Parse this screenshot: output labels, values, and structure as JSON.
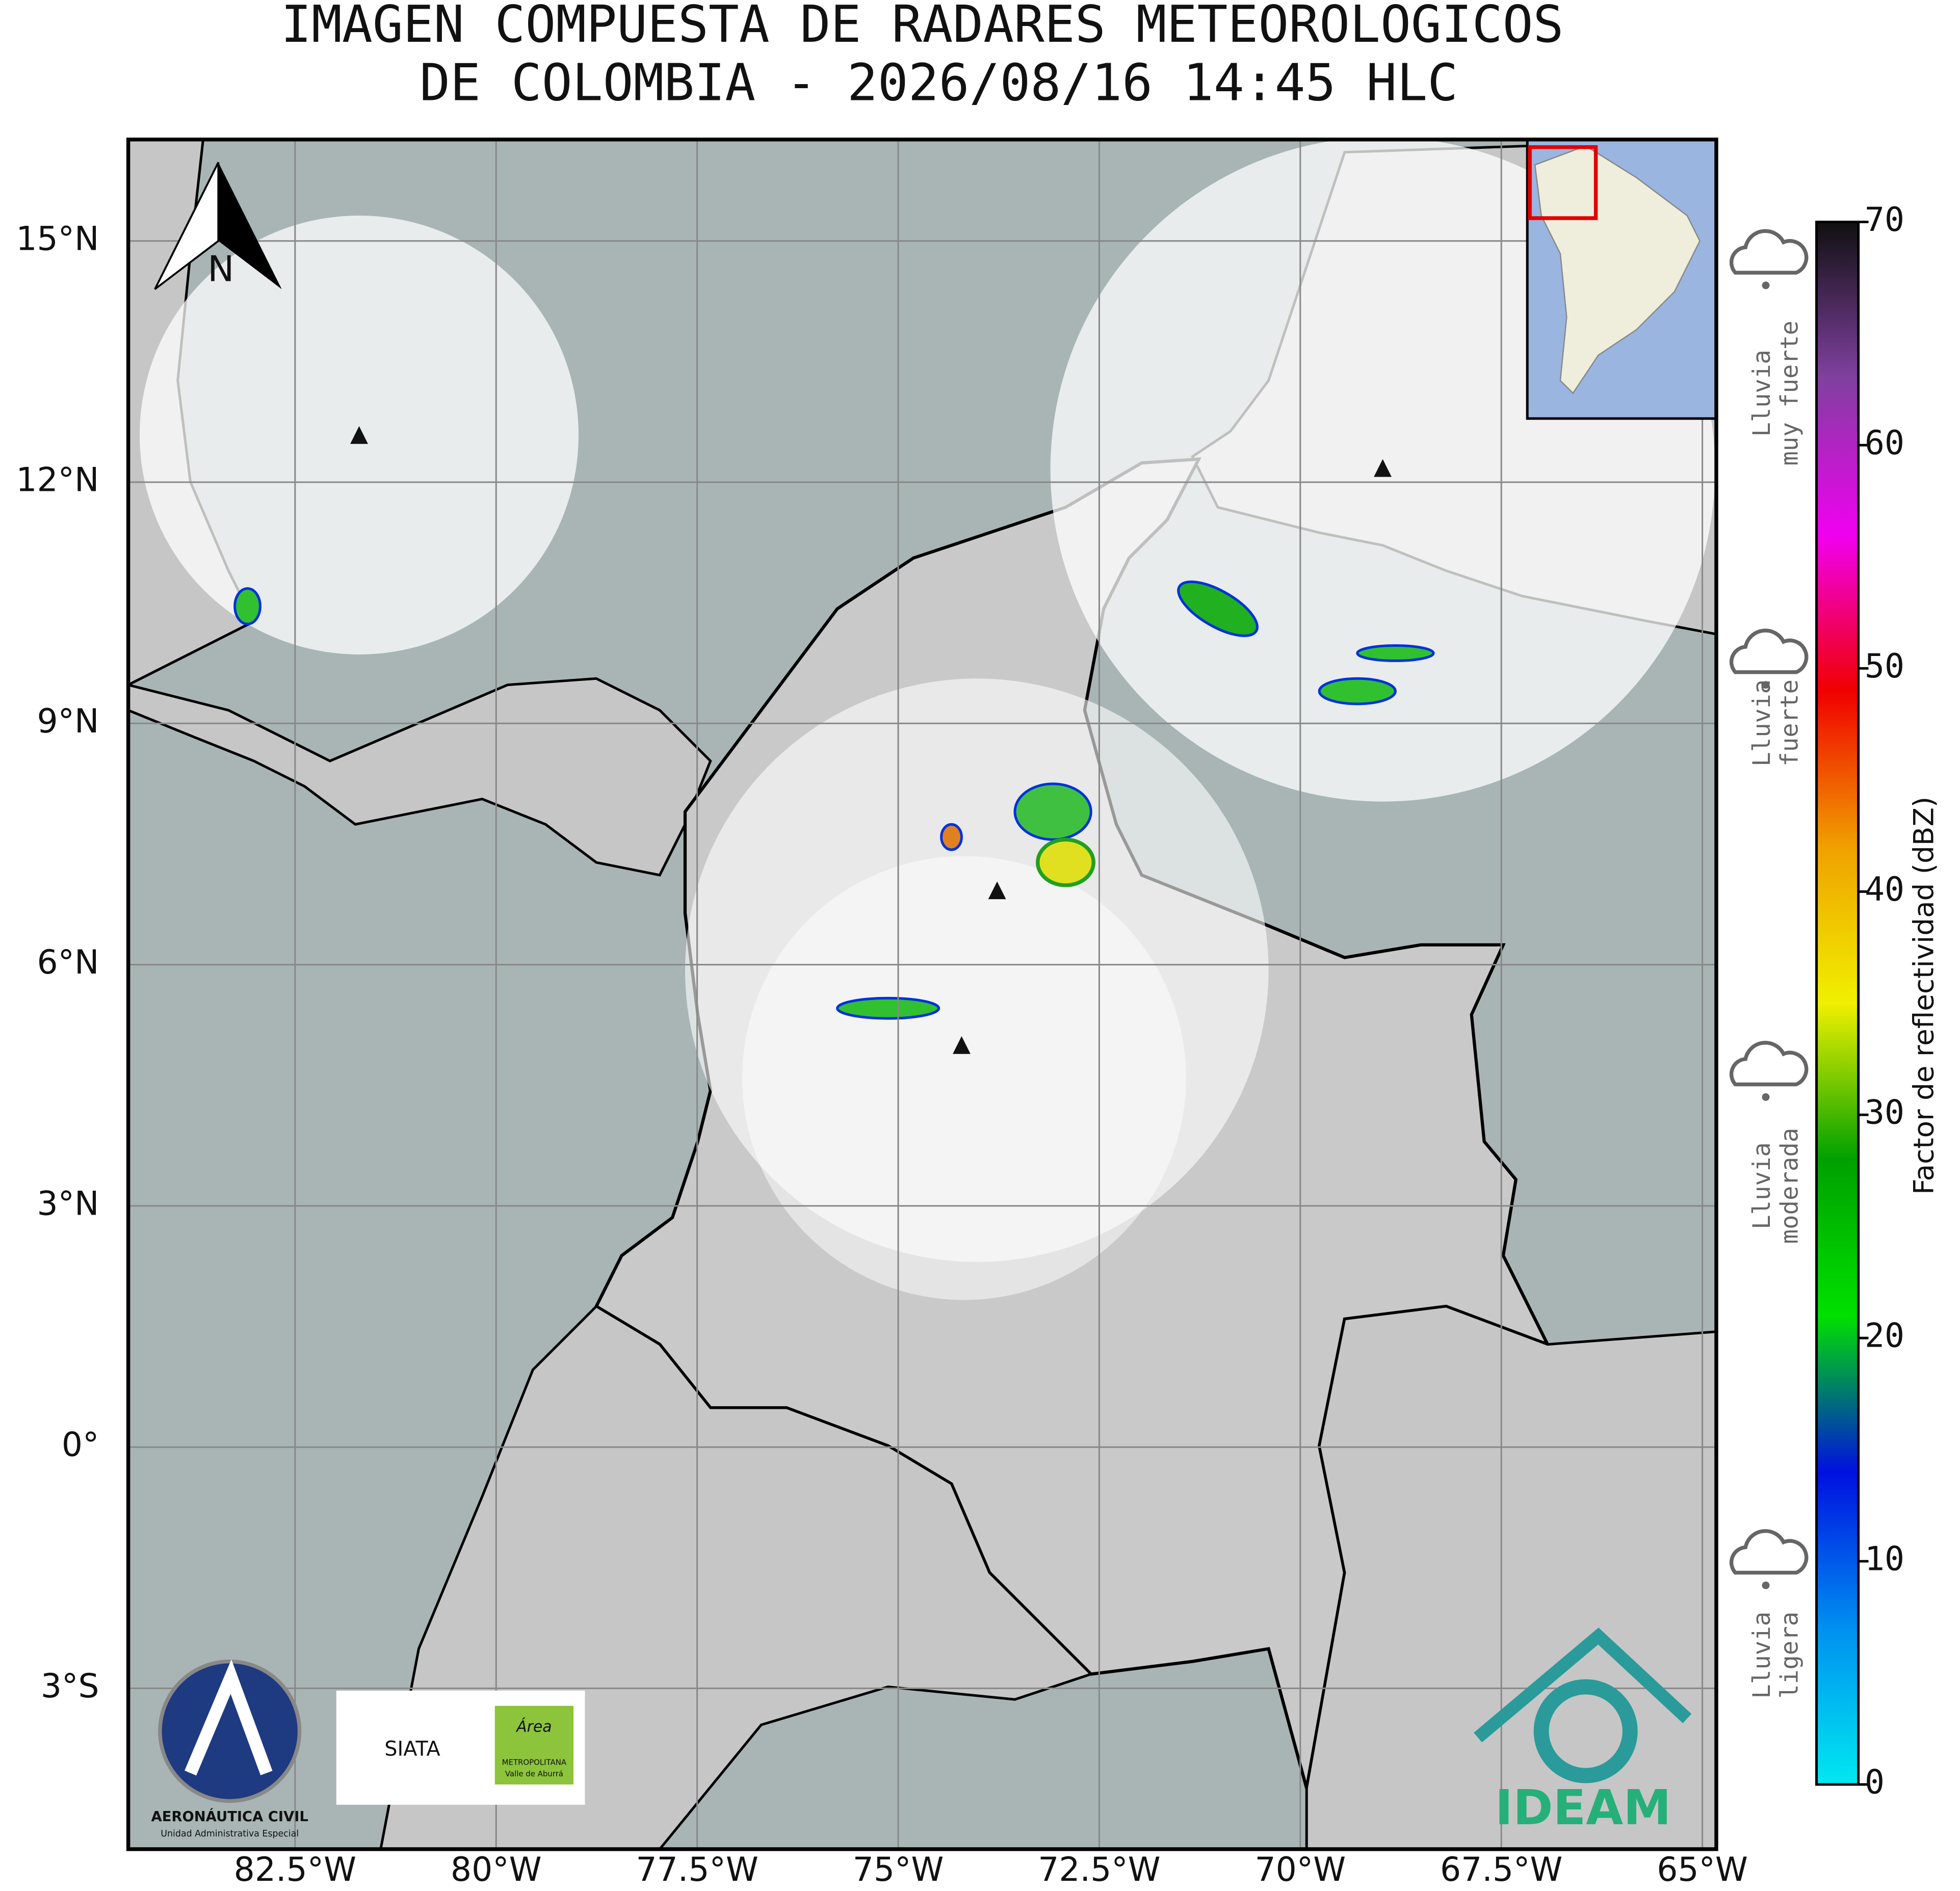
{
  "header": {
    "title_lines": [
      "IMAGEN COMPUESTA DE RADARES METEOROLOGICOS",
      "DE COLOMBIA - 2026/08/16 14:45 HLC"
    ]
  },
  "map": {
    "lon_ticks": [
      {
        "value": -82.5,
        "label": "82.5°W"
      },
      {
        "value": -80,
        "label": "80°W"
      },
      {
        "value": -77.5,
        "label": "77.5°W"
      },
      {
        "value": -75,
        "label": "75°W"
      },
      {
        "value": -72.5,
        "label": "72.5°W"
      },
      {
        "value": -70,
        "label": "70°W"
      },
      {
        "value": -67.5,
        "label": "67.5°W"
      },
      {
        "value": -65,
        "label": "65°W"
      }
    ],
    "lat_ticks": [
      {
        "value": 15,
        "label": "15°N"
      },
      {
        "value": 12,
        "label": "12°N"
      },
      {
        "value": 9,
        "label": "9°N"
      },
      {
        "value": 6,
        "label": "6°N"
      },
      {
        "value": 3,
        "label": "3°N"
      },
      {
        "value": 0,
        "label": "0°"
      },
      {
        "value": -3,
        "label": "3°S"
      }
    ],
    "north_label": "N"
  },
  "colorbar": {
    "label": "Factor de reflectividad (dBZ)",
    "range": [
      0,
      70
    ],
    "ticks": [
      0,
      10,
      20,
      30,
      40,
      50,
      60,
      70
    ],
    "colors": [
      "#00e8f0",
      "#0090f0",
      "#0010e0",
      "#00e000",
      "#00a000",
      "#f0f000",
      "#f0a000",
      "#f00000",
      "#f000f0",
      "#8040a0",
      "#101010"
    ]
  },
  "rain_levels": [
    {
      "lines": [
        "Lluvia",
        "muy fuerte"
      ]
    },
    {
      "lines": [
        "Lluvia",
        "fuerte"
      ]
    },
    {
      "lines": [
        "Lluvia",
        "moderada"
      ]
    },
    {
      "lines": [
        "Lluvia",
        "ligera"
      ]
    }
  ],
  "logos": {
    "aerocivil": [
      "AERONÁUTICA CIVIL",
      "Unidad Administrativa Especial"
    ],
    "siata": "SIATA",
    "area": [
      "Área",
      "METROPOLITANA",
      "Valle de Aburrá"
    ],
    "ideam": "IDEAM"
  }
}
